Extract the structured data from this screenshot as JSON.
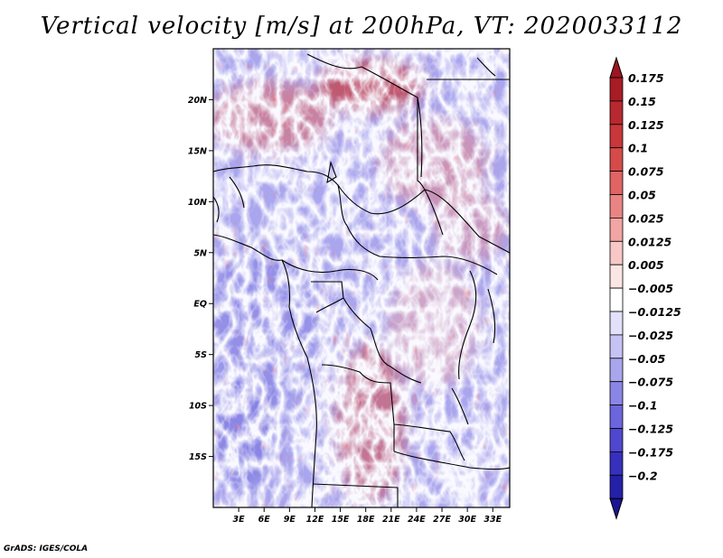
{
  "title": "Vertical velocity [m/s] at 200hPa, VT: 2020033112",
  "credit": "GrADS: IGES/COLA",
  "map": {
    "lon_range": [
      0,
      35
    ],
    "lat_range": [
      -20,
      25
    ],
    "lat_ticks": [
      {
        "value": 20,
        "label": "20N"
      },
      {
        "value": 15,
        "label": "15N"
      },
      {
        "value": 10,
        "label": "10N"
      },
      {
        "value": 5,
        "label": "5N"
      },
      {
        "value": 0,
        "label": "EQ"
      },
      {
        "value": -5,
        "label": "5S"
      },
      {
        "value": -10,
        "label": "10S"
      },
      {
        "value": -15,
        "label": "15S"
      }
    ],
    "lon_ticks": [
      {
        "value": 3,
        "label": "3E"
      },
      {
        "value": 6,
        "label": "6E"
      },
      {
        "value": 9,
        "label": "9E"
      },
      {
        "value": 12,
        "label": "12E"
      },
      {
        "value": 15,
        "label": "15E"
      },
      {
        "value": 18,
        "label": "18E"
      },
      {
        "value": 21,
        "label": "21E"
      },
      {
        "value": 24,
        "label": "24E"
      },
      {
        "value": 27,
        "label": "27E"
      },
      {
        "value": 30,
        "label": "30E"
      },
      {
        "value": 33,
        "label": "33E"
      }
    ]
  },
  "colorbar": {
    "levels": [
      {
        "label": "0.175",
        "color": "#a81c24"
      },
      {
        "label": "0.15",
        "color": "#b82830"
      },
      {
        "label": "0.125",
        "color": "#c8373a"
      },
      {
        "label": "0.1",
        "color": "#d54b49"
      },
      {
        "label": "0.075",
        "color": "#e06463"
      },
      {
        "label": "0.05",
        "color": "#ea8484"
      },
      {
        "label": "0.025",
        "color": "#f2a5a4"
      },
      {
        "label": "0.0125",
        "color": "#f8c8c6"
      },
      {
        "label": "0.005",
        "color": "#fce6e4"
      },
      {
        "label": "−0.005",
        "color": "#ffffff"
      },
      {
        "label": "−0.0125",
        "color": "#e2e0fa"
      },
      {
        "label": "−0.025",
        "color": "#c6c2f4"
      },
      {
        "label": "−0.05",
        "color": "#aaa6ee"
      },
      {
        "label": "−0.075",
        "color": "#8a86e6"
      },
      {
        "label": "−0.1",
        "color": "#6c66dc"
      },
      {
        "label": "−0.125",
        "color": "#4f48cf"
      },
      {
        "label": "−0.175",
        "color": "#3630bd"
      },
      {
        "label": "−0.2",
        "color": "#2420a8"
      }
    ],
    "top_color": "#9c1520",
    "bottom_color": "#1a1590"
  }
}
